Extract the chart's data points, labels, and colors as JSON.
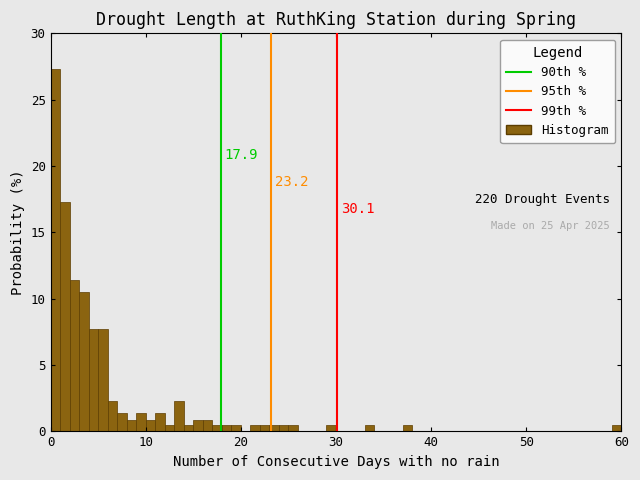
{
  "title": "Drought Length at RuthKing Station during Spring",
  "xlabel": "Number of Consecutive Days with no rain",
  "ylabel": "Probability (%)",
  "xlim": [
    0,
    60
  ],
  "ylim": [
    0,
    30
  ],
  "xticks": [
    0,
    10,
    20,
    30,
    40,
    50,
    60
  ],
  "yticks": [
    0,
    5,
    10,
    15,
    20,
    25,
    30
  ],
  "bar_color": "#8B6410",
  "bar_edge_color": "#5C3D00",
  "percentile_90_value": 17.9,
  "percentile_95_value": 23.2,
  "percentile_99_value": 30.1,
  "percentile_90_color": "#00CC00",
  "percentile_95_color": "#FF8C00",
  "percentile_99_color": "#FF0000",
  "n_events": 220,
  "date_text": "Made on 25 Apr 2025",
  "date_color": "#AAAAAA",
  "legend_title": "Legend",
  "bin_width": 1,
  "bar_heights": [
    27.3,
    17.3,
    11.4,
    10.5,
    7.7,
    7.7,
    2.3,
    1.4,
    0.9,
    1.4,
    0.9,
    1.4,
    0.5,
    2.3,
    0.5,
    0.9,
    0.9,
    0.5,
    0.5,
    0.5,
    0.0,
    0.5,
    0.5,
    0.5,
    0.5,
    0.5,
    0.0,
    0.0,
    0.0,
    0.5,
    0.0,
    0.0,
    0.0,
    0.5,
    0.0,
    0.0,
    0.0,
    0.5,
    0.0,
    0.0,
    0.0,
    0.0,
    0.0,
    0.0,
    0.0,
    0.0,
    0.0,
    0.0,
    0.0,
    0.0,
    0.0,
    0.0,
    0.0,
    0.0,
    0.0,
    0.0,
    0.0,
    0.0,
    0.0,
    0.5
  ],
  "bg_color": "#E8E8E8",
  "fig_bg_color": "#E8E8E8"
}
